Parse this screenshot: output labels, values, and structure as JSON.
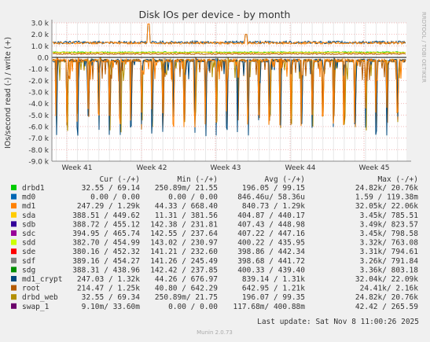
{
  "chart_data": {
    "type": "line",
    "title": "Disk IOs per device - by month",
    "ylabel": "IOs/second read (-) / write (+)",
    "ylim": [
      -9000,
      3000
    ],
    "y_ticks": [
      "3.0 k",
      "2.0 k",
      "1.0 k",
      "0.0",
      "-1.0 k",
      "-2.0 k",
      "-3.0 k",
      "-4.0 k",
      "-5.0 k",
      "-6.0 k",
      "-7.0 k",
      "-8.0 k",
      "-9.0 k"
    ],
    "y_tick_values": [
      3000,
      2000,
      1000,
      0,
      -1000,
      -2000,
      -3000,
      -4000,
      -5000,
      -6000,
      -7000,
      -8000,
      -9000
    ],
    "x_ticks": [
      "Week 41",
      "Week 42",
      "Week 43",
      "Week 44",
      "Week 45"
    ],
    "grid": true,
    "side_label": "RRDTOOL / TOBI OETIKER",
    "legend_header": {
      "cur": "Cur (-/+)",
      "min": "Min (-/+)",
      "avg": "Avg (-/+)",
      "max": "Max (-/+)"
    },
    "series": [
      {
        "name": "drbd1",
        "color": "#00cc00",
        "cur": "32.55 /  69.14",
        "min": "250.89m/  21.55",
        "avg": "196.05 /  99.15",
        "max": "24.82k/  20.76k"
      },
      {
        "name": "md0",
        "color": "#0066b3",
        "cur": "0.00 /   0.00",
        "min": "0.00 /   0.00",
        "avg": "846.46u/  58.36u",
        "max": "1.59 / 119.38m"
      },
      {
        "name": "md1",
        "color": "#ff8000",
        "cur": "247.29 /   1.29k",
        "min": "44.33 / 668.40",
        "avg": "840.73 /   1.29k",
        "max": "32.05k/  22.06k"
      },
      {
        "name": "sda",
        "color": "#ffcc00",
        "cur": "388.51 / 449.62",
        "min": "11.31 / 381.56",
        "avg": "404.87 / 440.17",
        "max": "3.45k/ 785.51"
      },
      {
        "name": "sdb",
        "color": "#330099",
        "cur": "388.72 / 455.12",
        "min": "142.38 / 231.81",
        "avg": "407.43 / 448.98",
        "max": "3.49k/ 823.57"
      },
      {
        "name": "sdc",
        "color": "#990099",
        "cur": "394.95 / 465.74",
        "min": "142.55 / 237.64",
        "avg": "407.22 / 447.16",
        "max": "3.45k/ 798.58"
      },
      {
        "name": "sdd",
        "color": "#ccff00",
        "cur": "382.70 / 454.99",
        "min": "143.02 / 230.97",
        "avg": "400.22 / 435.95",
        "max": "3.32k/ 763.08"
      },
      {
        "name": "sde",
        "color": "#ff0000",
        "cur": "380.16 / 452.32",
        "min": "141.21 / 232.60",
        "avg": "398.86 / 442.34",
        "max": "3.31k/ 794.61"
      },
      {
        "name": "sdf",
        "color": "#808080",
        "cur": "389.16 / 454.27",
        "min": "141.26 / 245.49",
        "avg": "398.68 / 441.72",
        "max": "3.26k/ 791.84"
      },
      {
        "name": "sdg",
        "color": "#008f00",
        "cur": "388.31 / 438.96",
        "min": "142.42 / 237.85",
        "avg": "400.33 / 439.40",
        "max": "3.36k/ 803.18"
      },
      {
        "name": "md1_crypt",
        "color": "#00487d",
        "cur": "247.03 /   1.32k",
        "min": "44.26 / 676.97",
        "avg": "839.14 /   1.31k",
        "max": "32.04k/  22.09k"
      },
      {
        "name": "root",
        "color": "#b35a00",
        "cur": "214.47 /   1.25k",
        "min": "40.80 / 642.29",
        "avg": "642.95 /   1.21k",
        "max": "24.41k/   2.16k"
      },
      {
        "name": "drbd_web",
        "color": "#b38f00",
        "cur": "32.55 /  69.34",
        "min": "250.89m/  21.75",
        "avg": "196.07 /  99.35",
        "max": "24.82k/  20.76k"
      },
      {
        "name": "swap_1",
        "color": "#6b006b",
        "cur": "9.10m/  33.60m",
        "min": "0.00 /   0.00",
        "avg": "117.68m/ 400.88m",
        "max": "42.42 / 265.59"
      }
    ],
    "last_update": "Last update: Sat Nov  8 11:00:26 2025",
    "footer": "Munin 2.0.73"
  }
}
